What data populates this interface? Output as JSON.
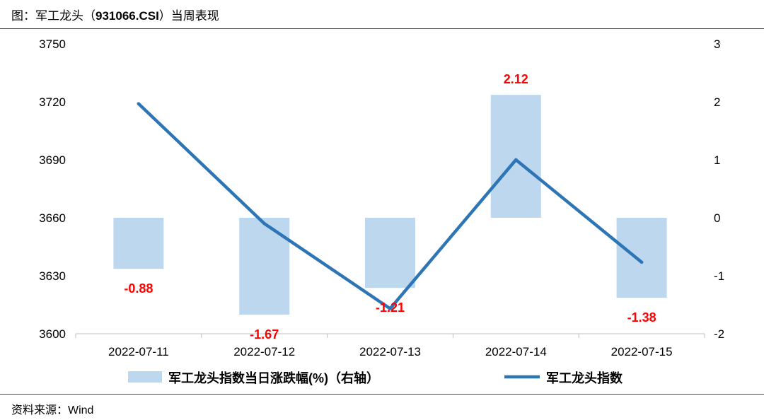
{
  "header": {
    "title_prefix": "图：军工龙头（",
    "title_code": "931066.CSI",
    "title_suffix": "）当周表现"
  },
  "footer": {
    "source": "资料来源：Wind"
  },
  "colors": {
    "bar": "#bdd7ee",
    "line": "#2e75b6",
    "label": "#ff0000",
    "axis": "#bfbfbf"
  },
  "chart_data": {
    "type": "bar+line",
    "categories": [
      "2022-07-11",
      "2022-07-12",
      "2022-07-13",
      "2022-07-14",
      "2022-07-15"
    ],
    "series": [
      {
        "name": "军工龙头指数当日涨跌幅(%)（右轴）",
        "type": "bar",
        "axis": "right",
        "values": [
          -0.88,
          -1.67,
          -1.21,
          2.12,
          -1.38
        ],
        "labels": [
          "-0.88",
          "-1.67",
          "-1.21",
          "2.12",
          "-1.38"
        ]
      },
      {
        "name": "军工龙头指数",
        "type": "line",
        "axis": "left",
        "values": [
          3719,
          3657,
          3613,
          3690,
          3637
        ]
      }
    ],
    "left_axis": {
      "min": 3600,
      "max": 3750,
      "ticks": [
        3600,
        3630,
        3660,
        3690,
        3720,
        3750
      ]
    },
    "right_axis": {
      "min": -2,
      "max": 3,
      "ticks": [
        -2,
        -1,
        0,
        1,
        2,
        3
      ]
    },
    "legend_position": "bottom"
  }
}
